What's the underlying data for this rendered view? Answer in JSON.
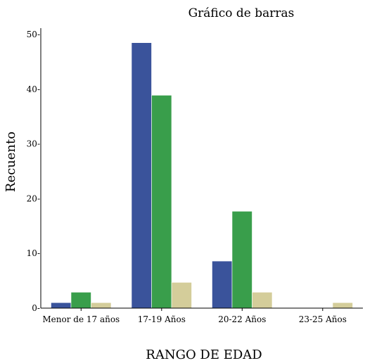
{
  "chart_data": {
    "type": "bar",
    "title": "Gráfico de barras",
    "xlabel": "RANGO DE EDAD",
    "ylabel": "Recuento",
    "categories": [
      "Menor de 17 años",
      "17-19 Años",
      "20-22 Años",
      "23-25 Años"
    ],
    "series": [
      {
        "color": "#3a539b",
        "values": [
          1,
          48.5,
          8.6,
          0
        ]
      },
      {
        "color": "#399e4b",
        "values": [
          2.9,
          38.9,
          17.7,
          0
        ]
      },
      {
        "color": "#d4cd9a",
        "values": [
          1,
          4.7,
          2.9,
          1
        ]
      }
    ],
    "ylim": [
      0,
      52
    ],
    "yticks": [
      0,
      10,
      20,
      30,
      40,
      50
    ],
    "ytick_labels": [
      "0-",
      "10-",
      "20-",
      "30-",
      "40-",
      "50-"
    ],
    "grid": false,
    "legend": "none"
  }
}
